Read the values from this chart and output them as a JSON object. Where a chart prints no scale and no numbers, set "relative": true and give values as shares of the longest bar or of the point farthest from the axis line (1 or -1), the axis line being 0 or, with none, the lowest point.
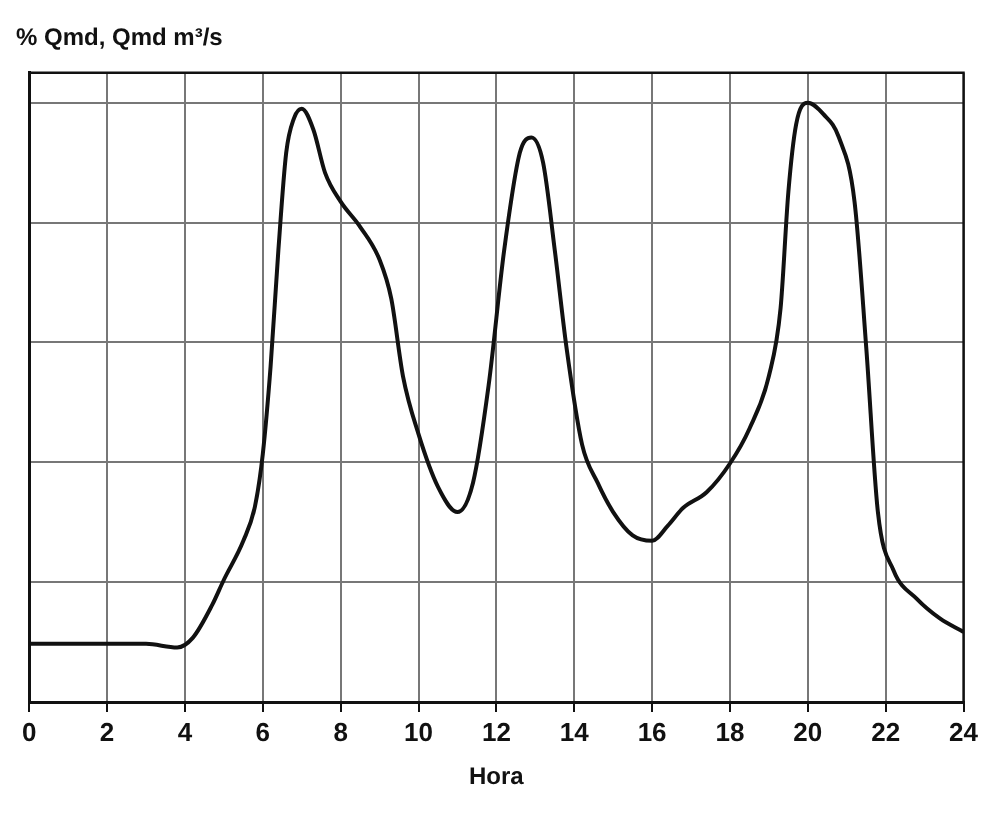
{
  "chart_data": {
    "type": "line",
    "ylabel": "% Qmd, Qmd m³/s",
    "xlabel": "Hora",
    "relative": true,
    "xlim": [
      0,
      24
    ],
    "xticks": [
      0,
      2,
      4,
      6,
      8,
      10,
      12,
      14,
      16,
      18,
      20,
      22,
      24
    ],
    "grid": true,
    "legend": false,
    "marker": "none",
    "line_style": "solid",
    "series": [
      {
        "color": "#111111",
        "x": [
          0,
          1,
          2,
          3,
          3.8,
          4.2,
          4.7,
          5,
          5.5,
          5.8,
          6,
          6.2,
          6.4,
          6.6,
          6.8,
          7,
          7.3,
          7.6,
          8,
          8.5,
          9,
          9.3,
          9.6,
          10,
          10.5,
          11,
          11.4,
          11.8,
          12.2,
          12.6,
          12.9,
          13.2,
          13.5,
          13.8,
          14.2,
          14.6,
          15,
          15.5,
          16,
          16.4,
          16.8,
          17.4,
          18,
          18.5,
          19,
          19.3,
          19.5,
          19.7,
          20,
          20.4,
          20.8,
          21.2,
          21.5,
          21.8,
          22.2,
          22.8,
          23.4,
          24
        ],
        "values": [
          0.097,
          0.097,
          0.097,
          0.097,
          0.091,
          0.107,
          0.162,
          0.204,
          0.269,
          0.327,
          0.414,
          0.56,
          0.754,
          0.916,
          0.974,
          0.99,
          0.955,
          0.883,
          0.835,
          0.793,
          0.738,
          0.673,
          0.544,
          0.447,
          0.359,
          0.317,
          0.366,
          0.528,
          0.754,
          0.916,
          0.942,
          0.9,
          0.754,
          0.592,
          0.43,
          0.366,
          0.317,
          0.278,
          0.269,
          0.294,
          0.324,
          0.35,
          0.398,
          0.456,
          0.544,
          0.657,
          0.851,
          0.964,
          1,
          0.981,
          0.942,
          0.835,
          0.592,
          0.317,
          0.22,
          0.172,
          0.139,
          0.117
        ]
      }
    ]
  }
}
